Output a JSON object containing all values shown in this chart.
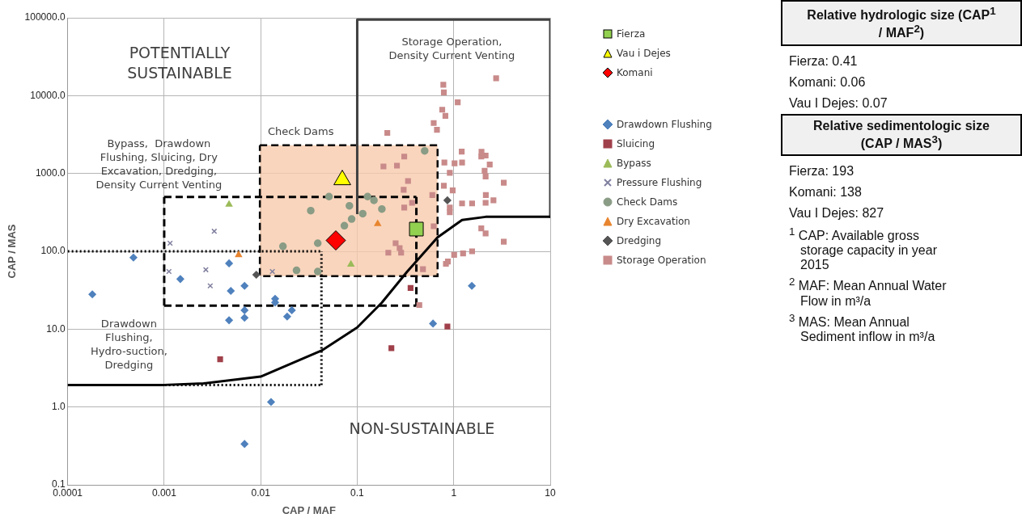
{
  "chart_data": {
    "type": "scatter",
    "xlabel": "CAP / MAF",
    "ylabel": "CAP / MAS",
    "log": "xy",
    "grid": true,
    "legend": "right",
    "xlim": [
      0.0001,
      10
    ],
    "xticks": [
      0.0001,
      0.001,
      0.01,
      0.1,
      1,
      10
    ],
    "ylim": [
      0.1,
      100000
    ],
    "yticks": [
      0.1,
      {
        "value": 1,
        "label": "1.0"
      },
      {
        "value": 10,
        "label": "10.0"
      },
      {
        "value": 100,
        "label": "100.0"
      },
      {
        "value": 1000,
        "label": "1000.0"
      },
      {
        "value": 10000,
        "label": "10000.0"
      },
      {
        "value": 100000,
        "label": "100000.0"
      }
    ],
    "series": [
      {
        "type": "area",
        "color": "#f8cbad",
        "marker": "none",
        "line_style": "dashed",
        "x": [
          0.0098,
          0.68,
          0.68,
          0.0098,
          0.0098
        ],
        "values": [
          2300,
          2300,
          48,
          48,
          2300
        ]
      },
      {
        "type": "line",
        "color": "#000000",
        "marker": "none",
        "line_style": "dashed",
        "x": [
          0.001,
          0.41
        ],
        "values": [
          500,
          500
        ]
      },
      {
        "type": "line",
        "color": "#000000",
        "marker": "none",
        "line_style": "dashed",
        "x": [
          0.001,
          0.41
        ],
        "values": [
          20,
          20
        ]
      },
      {
        "type": "line",
        "color": "#000000",
        "marker": "none",
        "line_style": "dashed",
        "x": [
          0.001,
          0.001
        ],
        "values": [
          20,
          500
        ]
      },
      {
        "type": "line",
        "color": "#000000",
        "marker": "none",
        "line_style": "dashed",
        "x": [
          0.41,
          0.41
        ],
        "values": [
          20,
          500
        ]
      },
      {
        "type": "line",
        "color": "#000000",
        "marker": "none",
        "line_style": "dotted",
        "x": [
          0.0001,
          0.0426
        ],
        "values": [
          100,
          100
        ]
      },
      {
        "type": "line",
        "color": "#000000",
        "marker": "none",
        "line_style": "dotted",
        "x": [
          0.0001,
          0.0426
        ],
        "values": [
          1.92,
          1.92
        ]
      },
      {
        "type": "line",
        "color": "#000000",
        "marker": "none",
        "line_style": "dotted",
        "x": [
          0.0426,
          0.0426
        ],
        "values": [
          1.92,
          100
        ]
      },
      {
        "type": "line",
        "color": "#404040",
        "marker": "none",
        "line_style": "solid",
        "x": [
          0.1,
          0.1,
          10,
          10
        ],
        "values": [
          300,
          95000,
          95000,
          277
        ]
      },
      {
        "type": "line",
        "color": "#000000",
        "marker": "none",
        "line_style": "solid",
        "x": [
          0.0001,
          0.001,
          0.00255,
          0.01,
          0.0426,
          0.1,
          0.18,
          0.33,
          0.68,
          1.22,
          2.14,
          10
        ],
        "values": [
          1.92,
          1.92,
          2.01,
          2.46,
          5.3,
          10.5,
          21.9,
          55,
          151,
          253,
          277,
          277
        ]
      },
      {
        "name": "Drawdown Flushing",
        "color": "#4f81bd",
        "marker": "diamond",
        "x": [
          0.00048,
          0.00018,
          0.00147,
          0.0047,
          0.0049,
          0.0068,
          0.0068,
          0.0068,
          0.0047,
          0.0141,
          0.0141,
          0.021,
          0.0188,
          0.0128,
          0.0068,
          0.61,
          1.54
        ],
        "values": [
          83,
          28,
          44,
          70,
          31,
          36,
          17.5,
          14,
          13,
          24.5,
          22,
          17.5,
          14.5,
          1.16,
          0.335,
          11.8,
          36
        ]
      },
      {
        "name": "Sluicing",
        "color": "#a0404a",
        "marker": "square",
        "x": [
          0.0038,
          0.226,
          0.86,
          0.357
        ],
        "values": [
          4.1,
          5.7,
          10.8,
          33.8
        ]
      },
      {
        "name": "Bypass",
        "color": "#9bbb59",
        "marker": "triangle",
        "x": [
          0.086,
          0.0047
        ],
        "values": [
          68,
          400
        ]
      },
      {
        "name": "Pressure Flushing",
        "color": "#7f7f9f",
        "marker": "cross",
        "x": [
          0.00115,
          0.0033,
          0.00112,
          0.0027,
          0.003,
          0.0132
        ],
        "values": [
          127,
          181,
          55,
          58,
          36,
          55
        ]
      },
      {
        "name": "Check Dams",
        "color": "#8a9c85",
        "marker": "circle",
        "x": [
          0.5,
          0.051,
          0.033,
          0.083,
          0.0875,
          0.0736,
          0.114,
          0.128,
          0.149,
          0.18,
          0.017,
          0.039,
          0.0235,
          0.039
        ],
        "values": [
          1950,
          505,
          333,
          384,
          260,
          213,
          304,
          505,
          452,
          349,
          116,
          127,
          57,
          55
        ]
      },
      {
        "name": "Dry Excavation",
        "color": "#e8852f",
        "marker": "triangle",
        "x": [
          0.163,
          0.0059
        ],
        "values": [
          225,
          90
        ]
      },
      {
        "name": "Dredging",
        "color": "#555555",
        "marker": "diamond",
        "x": [
          0.009,
          0.86
        ],
        "values": [
          50,
          452
        ]
      },
      {
        "name": "Storage Operation",
        "color": "#c98a8a",
        "marker": "square",
        "x": [
          2.75,
          0.78,
          0.79,
          1.1,
          0.76,
          0.82,
          0.62,
          0.67,
          0.205,
          1.21,
          1.94,
          2.14,
          1.93,
          0.8,
          1.02,
          1.22,
          2.36,
          0.307,
          0.258,
          0.187,
          2.09,
          0.91,
          2.14,
          3.3,
          0.336,
          0.79,
          0.975,
          0.303,
          0.6,
          2.15,
          2.58,
          1.22,
          1.55,
          2.14,
          0.37,
          0.307,
          0.91,
          0.91,
          1.93,
          2.14,
          3.3,
          0.62,
          0.25,
          0.275,
          0.21,
          0.285,
          0.83,
          0.87,
          1.01,
          1.25,
          1.55,
          0.48,
          0.44
        ],
        "values": [
          16700,
          13800,
          11000,
          8200,
          6600,
          5500,
          4450,
          3640,
          3320,
          1910,
          1900,
          1700,
          1650,
          1380,
          1350,
          1380,
          1300,
          1650,
          1260,
          1230,
          1080,
          1020,
          915,
          760,
          800,
          696,
          606,
          617,
          528,
          528,
          452,
          412,
          412,
          420,
          420,
          365,
          365,
          318,
          197,
          170,
          133,
          210,
          127,
          110,
          96,
          96,
          69,
          74,
          90,
          94,
          100,
          59,
          20.4
        ]
      },
      {
        "name": "Fierza",
        "color": "#92d050",
        "marker": "square",
        "x": [
          0.41
        ],
        "values": [
          193
        ]
      },
      {
        "name": "Vau i Dejes",
        "color": "#ffff00",
        "marker": "triangle",
        "x": [
          0.07
        ],
        "values": [
          827
        ]
      },
      {
        "name": "Komani",
        "color": "#ff0000",
        "marker": "diamond",
        "x": [
          0.06
        ],
        "values": [
          138
        ]
      }
    ],
    "annotations": [
      "POTENTIALLY\nSUSTAINABLE",
      "Storage Operation,\nDensity Current Venting",
      "Check Dams",
      "Bypass,  Drawdown\nFlushing, Sluicing, Dry\nExcavation, Dredging,\nDensity Current Venting",
      "Drawdown\nFlushing,\nHydro-suction,\nDredging",
      "NON-SUSTAINABLE",
      "Relative hydrologic size (CAP$^{1}$ / MAF$^{2}$)",
      "Fierza: 0.41",
      "Komani: 0.06",
      "Vau I Dejes: 0.07",
      "Relative sedimentologic size (CAP / MAS$^{3}$)",
      "Fierza: 193",
      "Komani: 138",
      "Vau I Dejes: 827",
      "$^{1}$ CAP: Available gross storage capacity in year 2015",
      "$^{2}$ MAF: Mean Annual Water Flow in m³/a",
      "$^{3}$ MAS: Mean Annual Sediment inflow in m³/a"
    ]
  }
}
